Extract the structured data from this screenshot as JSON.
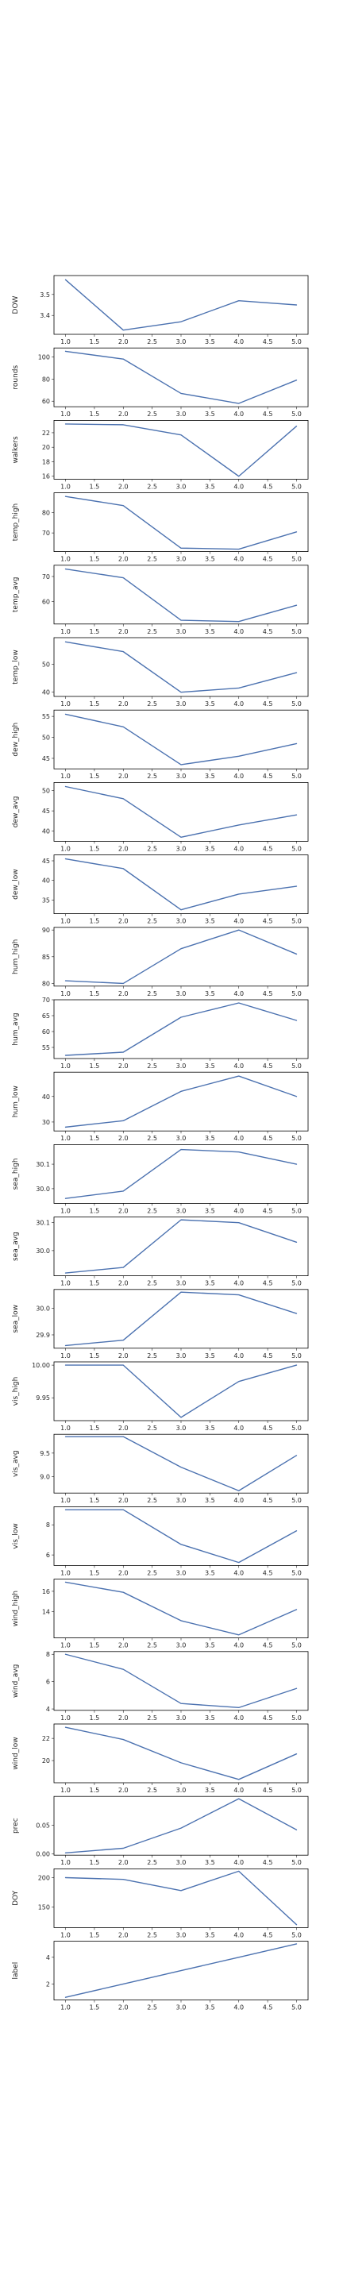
{
  "chart_data": [
    {
      "type": "line",
      "ylabel": "DOW",
      "x": [
        1,
        2,
        3,
        4,
        5
      ],
      "y": [
        3.57,
        3.33,
        3.37,
        3.47,
        3.45
      ],
      "ylim": [
        3.31,
        3.59
      ],
      "yticks": [
        3.4,
        3.5
      ],
      "ytick_labels": [
        "3.4",
        "3.5"
      ]
    },
    {
      "type": "line",
      "ylabel": "rounds",
      "x": [
        1,
        2,
        3,
        4,
        5
      ],
      "y": [
        105,
        98,
        67,
        58,
        79
      ],
      "ylim": [
        55,
        108
      ],
      "yticks": [
        60,
        80,
        100
      ],
      "ytick_labels": [
        "60",
        "80",
        "100"
      ]
    },
    {
      "type": "line",
      "ylabel": "walkers",
      "x": [
        1,
        2,
        3,
        4,
        5
      ],
      "y": [
        23.2,
        23.1,
        21.7,
        16.0,
        22.9
      ],
      "ylim": [
        15.6,
        23.7
      ],
      "yticks": [
        16,
        18,
        20,
        22
      ],
      "ytick_labels": [
        "16",
        "18",
        "20",
        "22"
      ]
    },
    {
      "type": "line",
      "ylabel": "temp_high",
      "x": [
        1,
        2,
        3,
        4,
        5
      ],
      "y": [
        88.0,
        83.5,
        62.5,
        62.0,
        70.5
      ],
      "ylim": [
        60.8,
        89.8
      ],
      "yticks": [
        70,
        80
      ],
      "ytick_labels": [
        "70",
        "80"
      ]
    },
    {
      "type": "line",
      "ylabel": "temp_avg",
      "x": [
        1,
        2,
        3,
        4,
        5
      ],
      "y": [
        73.0,
        69.5,
        52.5,
        52.0,
        58.5
      ],
      "ylim": [
        51.0,
        74.5
      ],
      "yticks": [
        60,
        70
      ],
      "ytick_labels": [
        "60",
        "70"
      ]
    },
    {
      "type": "line",
      "ylabel": "temp_low",
      "x": [
        1,
        2,
        3,
        4,
        5
      ],
      "y": [
        58.0,
        54.5,
        40.0,
        41.5,
        47.0
      ],
      "ylim": [
        38.5,
        59.5
      ],
      "yticks": [
        40,
        50
      ],
      "ytick_labels": [
        "40",
        "50"
      ]
    },
    {
      "type": "line",
      "ylabel": "dew_high",
      "x": [
        1,
        2,
        3,
        4,
        5
      ],
      "y": [
        55.5,
        52.5,
        43.5,
        45.5,
        48.5
      ],
      "ylim": [
        42.5,
        56.5
      ],
      "yticks": [
        45,
        50,
        55
      ],
      "ytick_labels": [
        "45",
        "50",
        "55"
      ]
    },
    {
      "type": "line",
      "ylabel": "dew_avg",
      "x": [
        1,
        2,
        3,
        4,
        5
      ],
      "y": [
        51.0,
        48.0,
        38.5,
        41.5,
        44.0
      ],
      "ylim": [
        37.5,
        52.0
      ],
      "yticks": [
        40,
        45,
        50
      ],
      "ytick_labels": [
        "40",
        "45",
        "50"
      ]
    },
    {
      "type": "line",
      "ylabel": "dew_low",
      "x": [
        1,
        2,
        3,
        4,
        5
      ],
      "y": [
        45.5,
        43.0,
        32.5,
        36.5,
        38.5
      ],
      "ylim": [
        31.5,
        46.5
      ],
      "yticks": [
        35,
        40,
        45
      ],
      "ytick_labels": [
        "35",
        "40",
        "45"
      ]
    },
    {
      "type": "line",
      "ylabel": "hum_high",
      "x": [
        1,
        2,
        3,
        4,
        5
      ],
      "y": [
        80.5,
        80.0,
        86.5,
        90.0,
        85.5
      ],
      "ylim": [
        79.5,
        90.5
      ],
      "yticks": [
        80,
        85,
        90
      ],
      "ytick_labels": [
        "80",
        "85",
        "90"
      ]
    },
    {
      "type": "line",
      "ylabel": "hum_avg",
      "x": [
        1,
        2,
        3,
        4,
        5
      ],
      "y": [
        52.5,
        53.5,
        64.5,
        69.0,
        63.5
      ],
      "ylim": [
        51.5,
        70.0
      ],
      "yticks": [
        55,
        60,
        65,
        70
      ],
      "ytick_labels": [
        "55",
        "60",
        "65",
        "70"
      ]
    },
    {
      "type": "line",
      "ylabel": "hum_low",
      "x": [
        1,
        2,
        3,
        4,
        5
      ],
      "y": [
        28.0,
        30.5,
        42.0,
        48.0,
        40.0
      ],
      "ylim": [
        26.5,
        49.5
      ],
      "yticks": [
        30,
        40
      ],
      "ytick_labels": [
        "30",
        "40"
      ]
    },
    {
      "type": "line",
      "ylabel": "sea_high",
      "x": [
        1,
        2,
        3,
        4,
        5
      ],
      "y": [
        29.96,
        29.99,
        30.16,
        30.15,
        30.1
      ],
      "ylim": [
        29.94,
        30.18
      ],
      "yticks": [
        30.0,
        30.1
      ],
      "ytick_labels": [
        "30.0",
        "30.1"
      ]
    },
    {
      "type": "line",
      "ylabel": "sea_avg",
      "x": [
        1,
        2,
        3,
        4,
        5
      ],
      "y": [
        29.92,
        29.94,
        30.11,
        30.1,
        30.03
      ],
      "ylim": [
        29.91,
        30.12
      ],
      "yticks": [
        30.0,
        30.1
      ],
      "ytick_labels": [
        "30.0",
        "30.1"
      ]
    },
    {
      "type": "line",
      "ylabel": "sea_low",
      "x": [
        1,
        2,
        3,
        4,
        5
      ],
      "y": [
        29.86,
        29.88,
        30.06,
        30.05,
        29.98
      ],
      "ylim": [
        29.85,
        30.07
      ],
      "yticks": [
        29.9,
        30.0
      ],
      "ytick_labels": [
        "29.9",
        "30.0"
      ]
    },
    {
      "type": "line",
      "ylabel": "vis_high",
      "x": [
        1,
        2,
        3,
        4,
        5
      ],
      "y": [
        10.0,
        10.0,
        9.92,
        9.975,
        10.0
      ],
      "ylim": [
        9.915,
        10.005
      ],
      "yticks": [
        9.95,
        10.0
      ],
      "ytick_labels": [
        "9.95",
        "10.00"
      ]
    },
    {
      "type": "line",
      "ylabel": "vis_avg",
      "x": [
        1,
        2,
        3,
        4,
        5
      ],
      "y": [
        9.85,
        9.85,
        9.2,
        8.7,
        9.45
      ],
      "ylim": [
        8.65,
        9.9
      ],
      "yticks": [
        9.0,
        9.5
      ],
      "ytick_labels": [
        "9.0",
        "9.5"
      ]
    },
    {
      "type": "line",
      "ylabel": "vis_low",
      "x": [
        1,
        2,
        3,
        4,
        5
      ],
      "y": [
        9.0,
        9.0,
        6.7,
        5.5,
        7.6
      ],
      "ylim": [
        5.3,
        9.2
      ],
      "yticks": [
        6,
        8
      ],
      "ytick_labels": [
        "6",
        "8"
      ]
    },
    {
      "type": "line",
      "ylabel": "wind_high",
      "x": [
        1,
        2,
        3,
        4,
        5
      ],
      "y": [
        16.9,
        15.9,
        13.1,
        11.7,
        14.2
      ],
      "ylim": [
        11.4,
        17.2
      ],
      "yticks": [
        14,
        16
      ],
      "ytick_labels": [
        "14",
        "16"
      ]
    },
    {
      "type": "line",
      "ylabel": "wind_avg",
      "x": [
        1,
        2,
        3,
        4,
        5
      ],
      "y": [
        8.0,
        6.9,
        4.4,
        4.1,
        5.5
      ],
      "ylim": [
        3.9,
        8.2
      ],
      "yticks": [
        4,
        6,
        8
      ],
      "ytick_labels": [
        "4",
        "6",
        "8"
      ]
    },
    {
      "type": "line",
      "ylabel": "wind_low",
      "x": [
        1,
        2,
        3,
        4,
        5
      ],
      "y": [
        23.0,
        21.9,
        19.8,
        18.3,
        20.6
      ],
      "ylim": [
        18.0,
        23.3
      ],
      "yticks": [
        20,
        22
      ],
      "ytick_labels": [
        "20",
        "22"
      ]
    },
    {
      "type": "line",
      "ylabel": "prec",
      "x": [
        1,
        2,
        3,
        4,
        5
      ],
      "y": [
        0.002,
        0.01,
        0.045,
        0.096,
        0.042
      ],
      "ylim": [
        -0.002,
        0.1
      ],
      "yticks": [
        0.0,
        0.05
      ],
      "ytick_labels": [
        "0.00",
        "0.05"
      ]
    },
    {
      "type": "line",
      "ylabel": "DOY",
      "x": [
        1,
        2,
        3,
        4,
        5
      ],
      "y": [
        200,
        197,
        178,
        211,
        120
      ],
      "ylim": [
        115,
        215
      ],
      "yticks": [
        150,
        200
      ],
      "ytick_labels": [
        "150",
        "200"
      ]
    },
    {
      "type": "line",
      "ylabel": "label",
      "x": [
        1,
        2,
        3,
        4,
        5
      ],
      "y": [
        1,
        2,
        3,
        4,
        5
      ],
      "ylim": [
        0.8,
        5.2
      ],
      "yticks": [
        2,
        4
      ],
      "ytick_labels": [
        "2",
        "4"
      ]
    }
  ],
  "shared_xaxis": {
    "xlim": [
      0.8,
      5.2
    ],
    "xticks": [
      1.0,
      1.5,
      2.0,
      2.5,
      3.0,
      3.5,
      4.0,
      4.5,
      5.0
    ],
    "xtick_labels": [
      "1.0",
      "1.5",
      "2.0",
      "2.5",
      "3.0",
      "3.5",
      "4.0",
      "4.5",
      "5.0"
    ]
  },
  "style": {
    "line_color": "#4c72b0",
    "axis_color": "#000000",
    "text_color": "#262626"
  }
}
